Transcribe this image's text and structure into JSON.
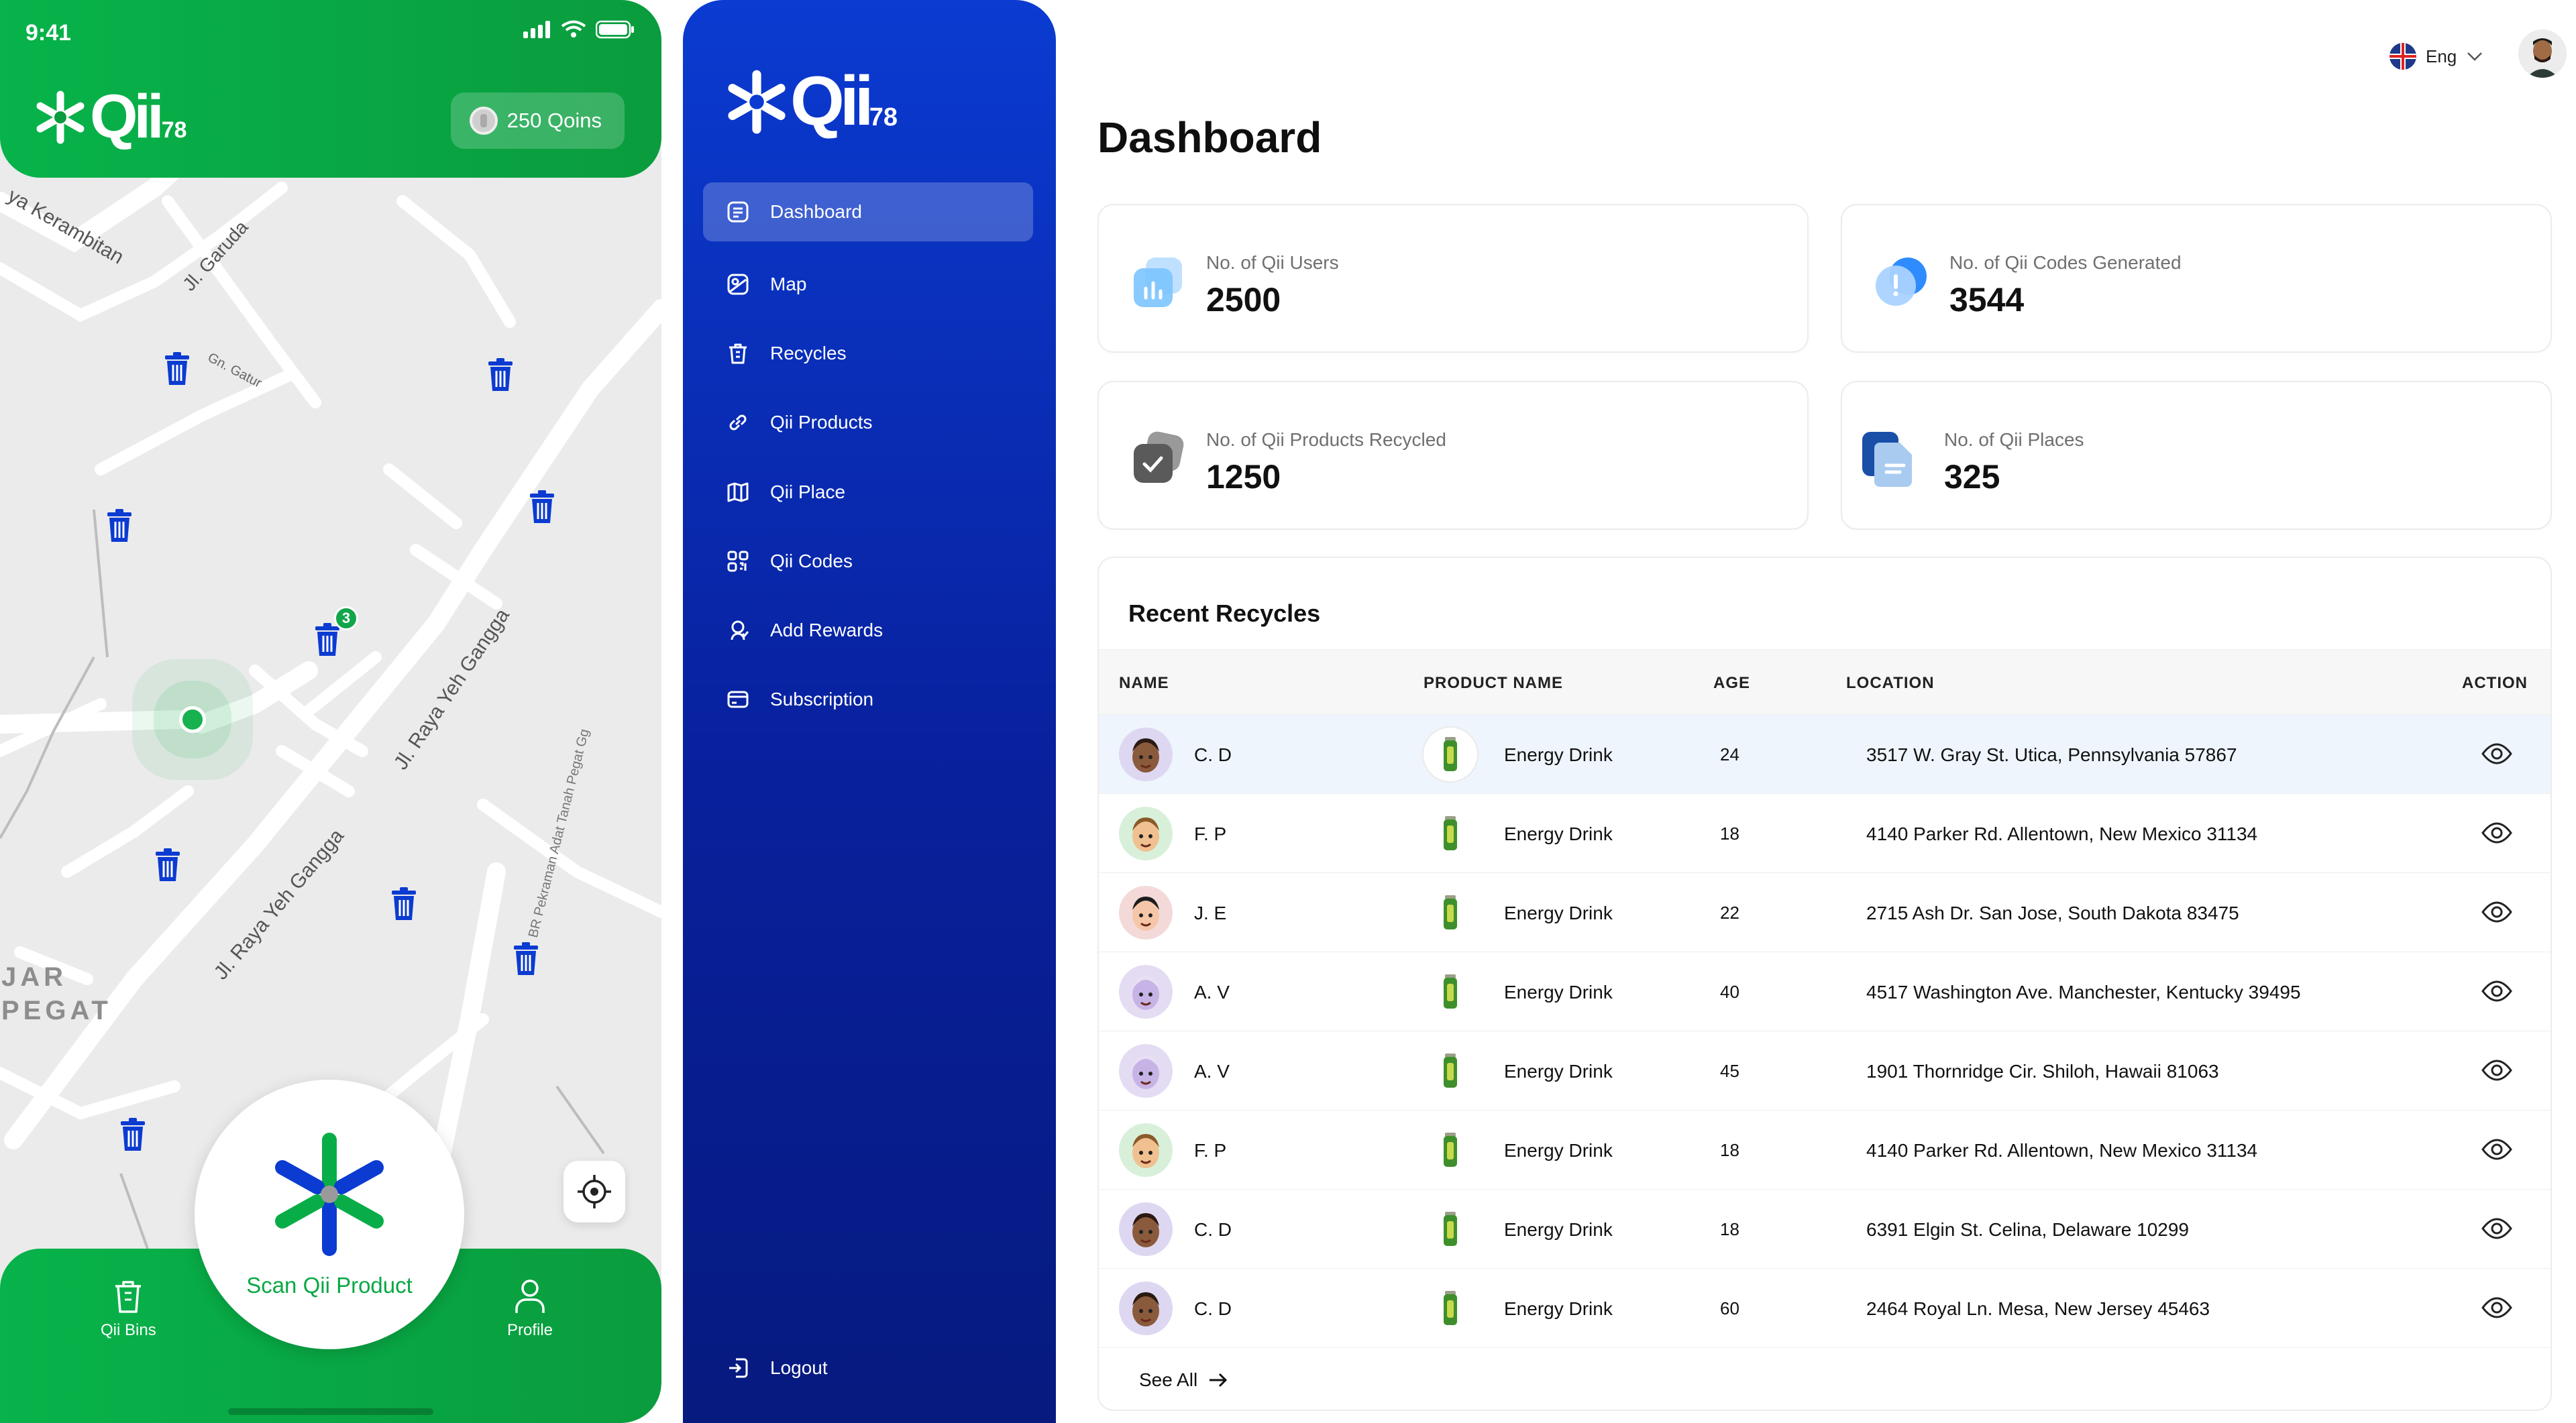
{
  "phone": {
    "time": "9:41",
    "brand_text": "Qii",
    "brand_num": "78",
    "qoins": "250 Qoins",
    "map_labels": {
      "kerambitan": "ya Kerambitan",
      "garuda": "Jl. Garuda",
      "gn_gatur": "Gn. Gatur",
      "raya_yeh_gangga_1": "Jl. Raya Yeh Gangga",
      "raya_yeh_gangga_2": "Jl. Raya Yeh Gangga",
      "pekraman": "BR Pekraman Adat Tanah Pegat Gg",
      "area": "JAR\nPEGAT"
    },
    "cluster_count": "3",
    "scan_label": "Scan Qii Product",
    "nav": {
      "bins": "Qii Bins",
      "profile": "Profile"
    }
  },
  "sidebar": {
    "brand_text": "Qii",
    "brand_num": "78",
    "items": [
      {
        "label": "Dashboard",
        "icon": "dashboard-icon",
        "active": true
      },
      {
        "label": "Map",
        "icon": "map-icon"
      },
      {
        "label": "Recycles",
        "icon": "trash-icon"
      },
      {
        "label": "Qii Products",
        "icon": "link-icon"
      },
      {
        "label": "Qii Place",
        "icon": "map-fold-icon"
      },
      {
        "label": "Qii Codes",
        "icon": "qr-icon"
      },
      {
        "label": "Add Rewards",
        "icon": "reward-icon"
      },
      {
        "label": "Subscription",
        "icon": "card-icon"
      }
    ],
    "logout": "Logout"
  },
  "header": {
    "language": "Eng"
  },
  "dashboard": {
    "title": "Dashboard",
    "stats": [
      {
        "label": "No. of Qii Users",
        "value": "2500",
        "color": "#7cc4ff"
      },
      {
        "label": "No. of Qii Codes Generated",
        "value": "3544",
        "color": "#2f8cff"
      },
      {
        "label": "No. of Qii Products Recycled",
        "value": "1250",
        "color": "#555555"
      },
      {
        "label": "No. of Qii Places",
        "value": "325",
        "color": "#1a4fa8"
      }
    ],
    "recent": {
      "title": "Recent Recycles",
      "columns": [
        "NAME",
        "PRODUCT NAME",
        "AGE",
        "LOCATION",
        "ACTION"
      ],
      "rows": [
        {
          "name": "C. D",
          "product": "Energy Drink",
          "age": "24",
          "location": "3517 W. Gray St. Utica, Pennsylvania 57867"
        },
        {
          "name": "F. P",
          "product": "Energy Drink",
          "age": "18",
          "location": "4140 Parker Rd. Allentown, New Mexico 31134"
        },
        {
          "name": "J. E",
          "product": "Energy Drink",
          "age": "22",
          "location": "2715 Ash Dr. San Jose, South Dakota 83475"
        },
        {
          "name": "A. V",
          "product": "Energy Drink",
          "age": "40",
          "location": "4517 Washington Ave. Manchester, Kentucky 39495"
        },
        {
          "name": "A. V",
          "product": "Energy Drink",
          "age": "45",
          "location": "1901 Thornridge Cir. Shiloh, Hawaii 81063"
        },
        {
          "name": "F. P",
          "product": "Energy Drink",
          "age": "18",
          "location": "4140 Parker Rd. Allentown, New Mexico 31134"
        },
        {
          "name": "C. D",
          "product": "Energy Drink",
          "age": "18",
          "location": "6391 Elgin St. Celina, Delaware 10299"
        },
        {
          "name": "C. D",
          "product": "Energy Drink",
          "age": "60",
          "location": "2464 Royal Ln. Mesa, New Jersey 45463"
        }
      ],
      "see_all": "See All"
    }
  },
  "colors": {
    "green": "#07b34a",
    "blue": "#0b3bd1",
    "dark_blue": "#061a7f"
  }
}
